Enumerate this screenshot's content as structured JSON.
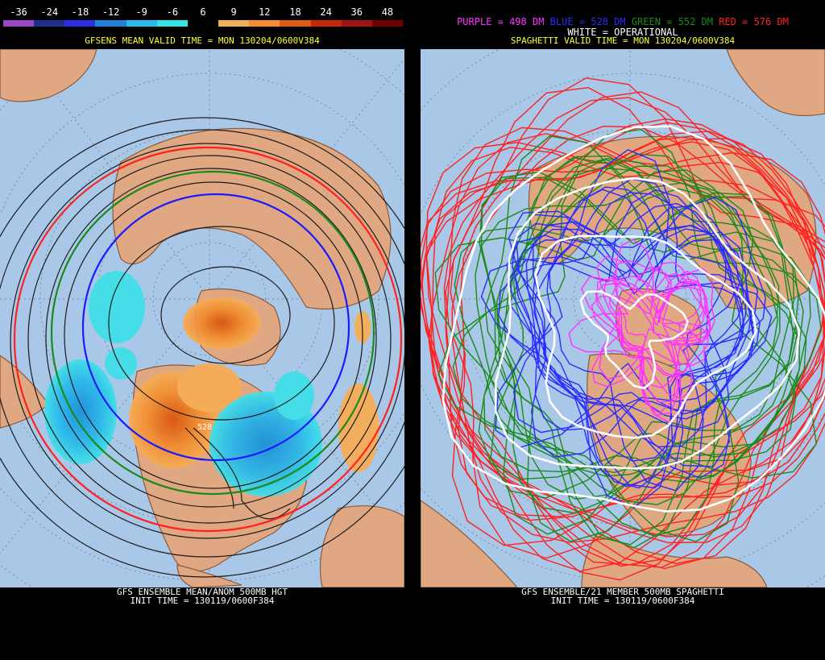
{
  "left": {
    "colorbar": {
      "ticks": [
        "-36",
        "-24",
        "-18",
        "-12",
        "-9",
        "-6",
        "6",
        "9",
        "12",
        "18",
        "24",
        "36",
        "48"
      ],
      "colors": [
        "#9a46c8",
        "#1c2f8a",
        "#2d2de6",
        "#1f84d9",
        "#26bcec",
        "#32e6e6",
        "#000000",
        "#f2b158",
        "#f58c32",
        "#e05a14",
        "#c8280a",
        "#a01414",
        "#6e0000"
      ]
    },
    "title": "GFSENS MEAN VALID TIME = MON 130204/0600V384",
    "contour_label": "528",
    "footer_line1": "GFS ENSEMBLE MEAN/ANOM 500MB HGT",
    "footer_line2": "INIT TIME = 130119/0600F384"
  },
  "right": {
    "legend": [
      {
        "text": "PURPLE = 498 DM",
        "color": "#ff33ff"
      },
      {
        "text": "BLUE = 528 DM",
        "color": "#2b2bff"
      },
      {
        "text": "GREEN = 552 DM",
        "color": "#1b8a1b"
      },
      {
        "text": "RED = 576 DM",
        "color": "#ff2020"
      }
    ],
    "operational": "WHITE = OPERATIONAL",
    "title": "SPAGHETTI VALID TIME = MON 130204/0600V384",
    "footer_line1": "GFS ENSEMBLE/21 MEMBER 500MB SPAGHETTI",
    "footer_line2": "INIT TIME = 130119/0600F384"
  },
  "colors": {
    "ocean": "#a9c8e8",
    "land": "#e0a882",
    "coast": "#8a5a3c"
  }
}
